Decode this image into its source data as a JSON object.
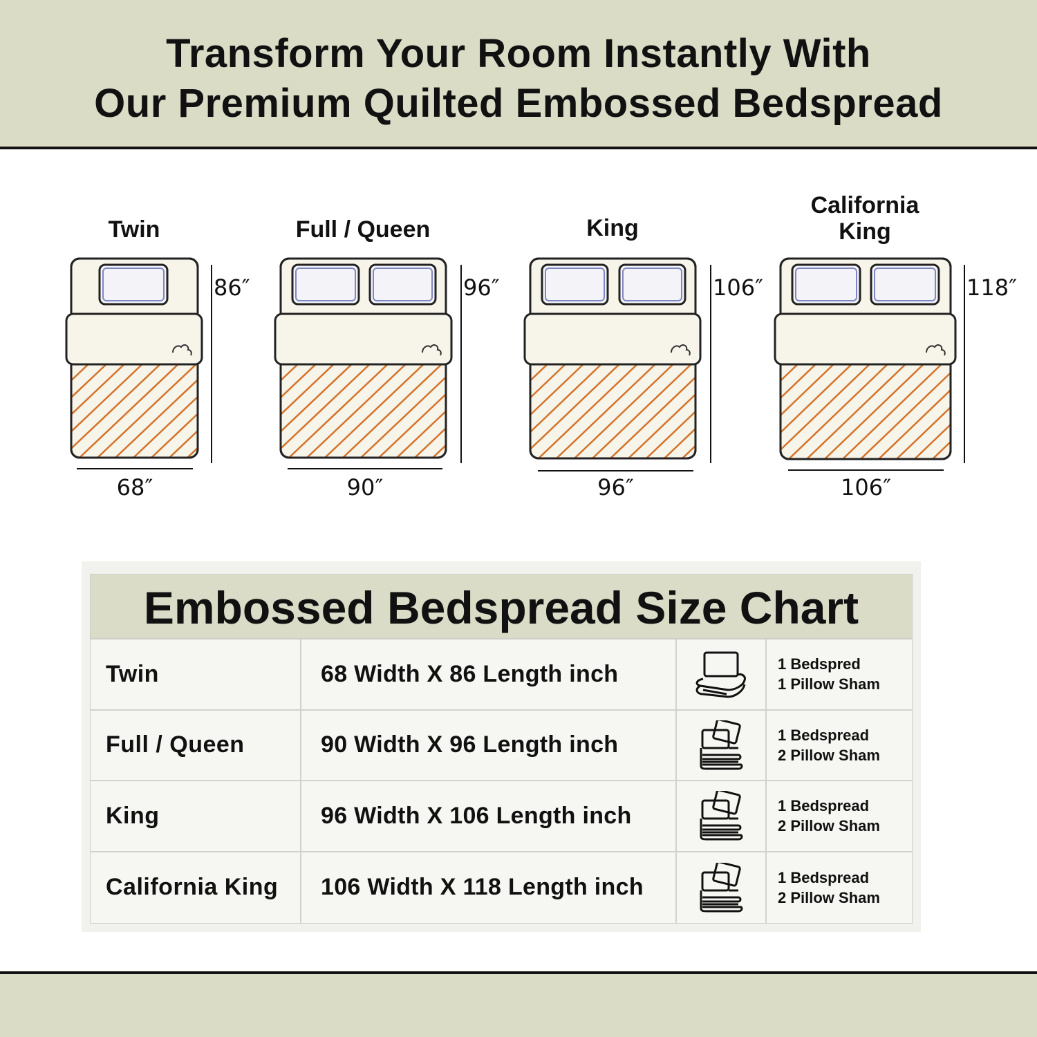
{
  "header": {
    "line1": "Transform Your Room Instantly With",
    "line2": "Our Premium Quilted Embossed Bedspread"
  },
  "beds": [
    {
      "title": "Twin",
      "width": "68″",
      "length": "86″"
    },
    {
      "title": "Full / Queen",
      "width": "90″",
      "length": "96″"
    },
    {
      "title": "King",
      "width": "96″",
      "length": "106″"
    },
    {
      "title": "California King",
      "width": "106″",
      "length": "118″"
    }
  ],
  "colors": {
    "band": "#dadcc6",
    "stripe": "#d4732a",
    "pillow": "#7f86c4",
    "sheet": "#f7f4ea"
  },
  "size_chart": {
    "title": "Embossed Bedspread Size Chart",
    "rows": [
      {
        "size": "Twin",
        "dimensions": "68 Width X 86 Length inch",
        "icon": "bedding-set-one-pillow-icon",
        "line1": "1 Bedspred",
        "line2": "1 Pillow Sham"
      },
      {
        "size": "Full / Queen",
        "dimensions": "90 Width X 96 Length inch",
        "icon": "bedding-set-two-pillows-icon",
        "line1": "1 Bedspread",
        "line2": "2 Pillow Sham"
      },
      {
        "size": "King",
        "dimensions": "96 Width X 106 Length inch",
        "icon": "bedding-set-two-pillows-icon",
        "line1": "1 Bedspread",
        "line2": "2 Pillow Sham"
      },
      {
        "size": "California King",
        "dimensions": "106 Width X 118 Length inch",
        "icon": "bedding-set-two-pillows-icon",
        "line1": "1 Bedspread",
        "line2": "2 Pillow Sham"
      }
    ]
  }
}
